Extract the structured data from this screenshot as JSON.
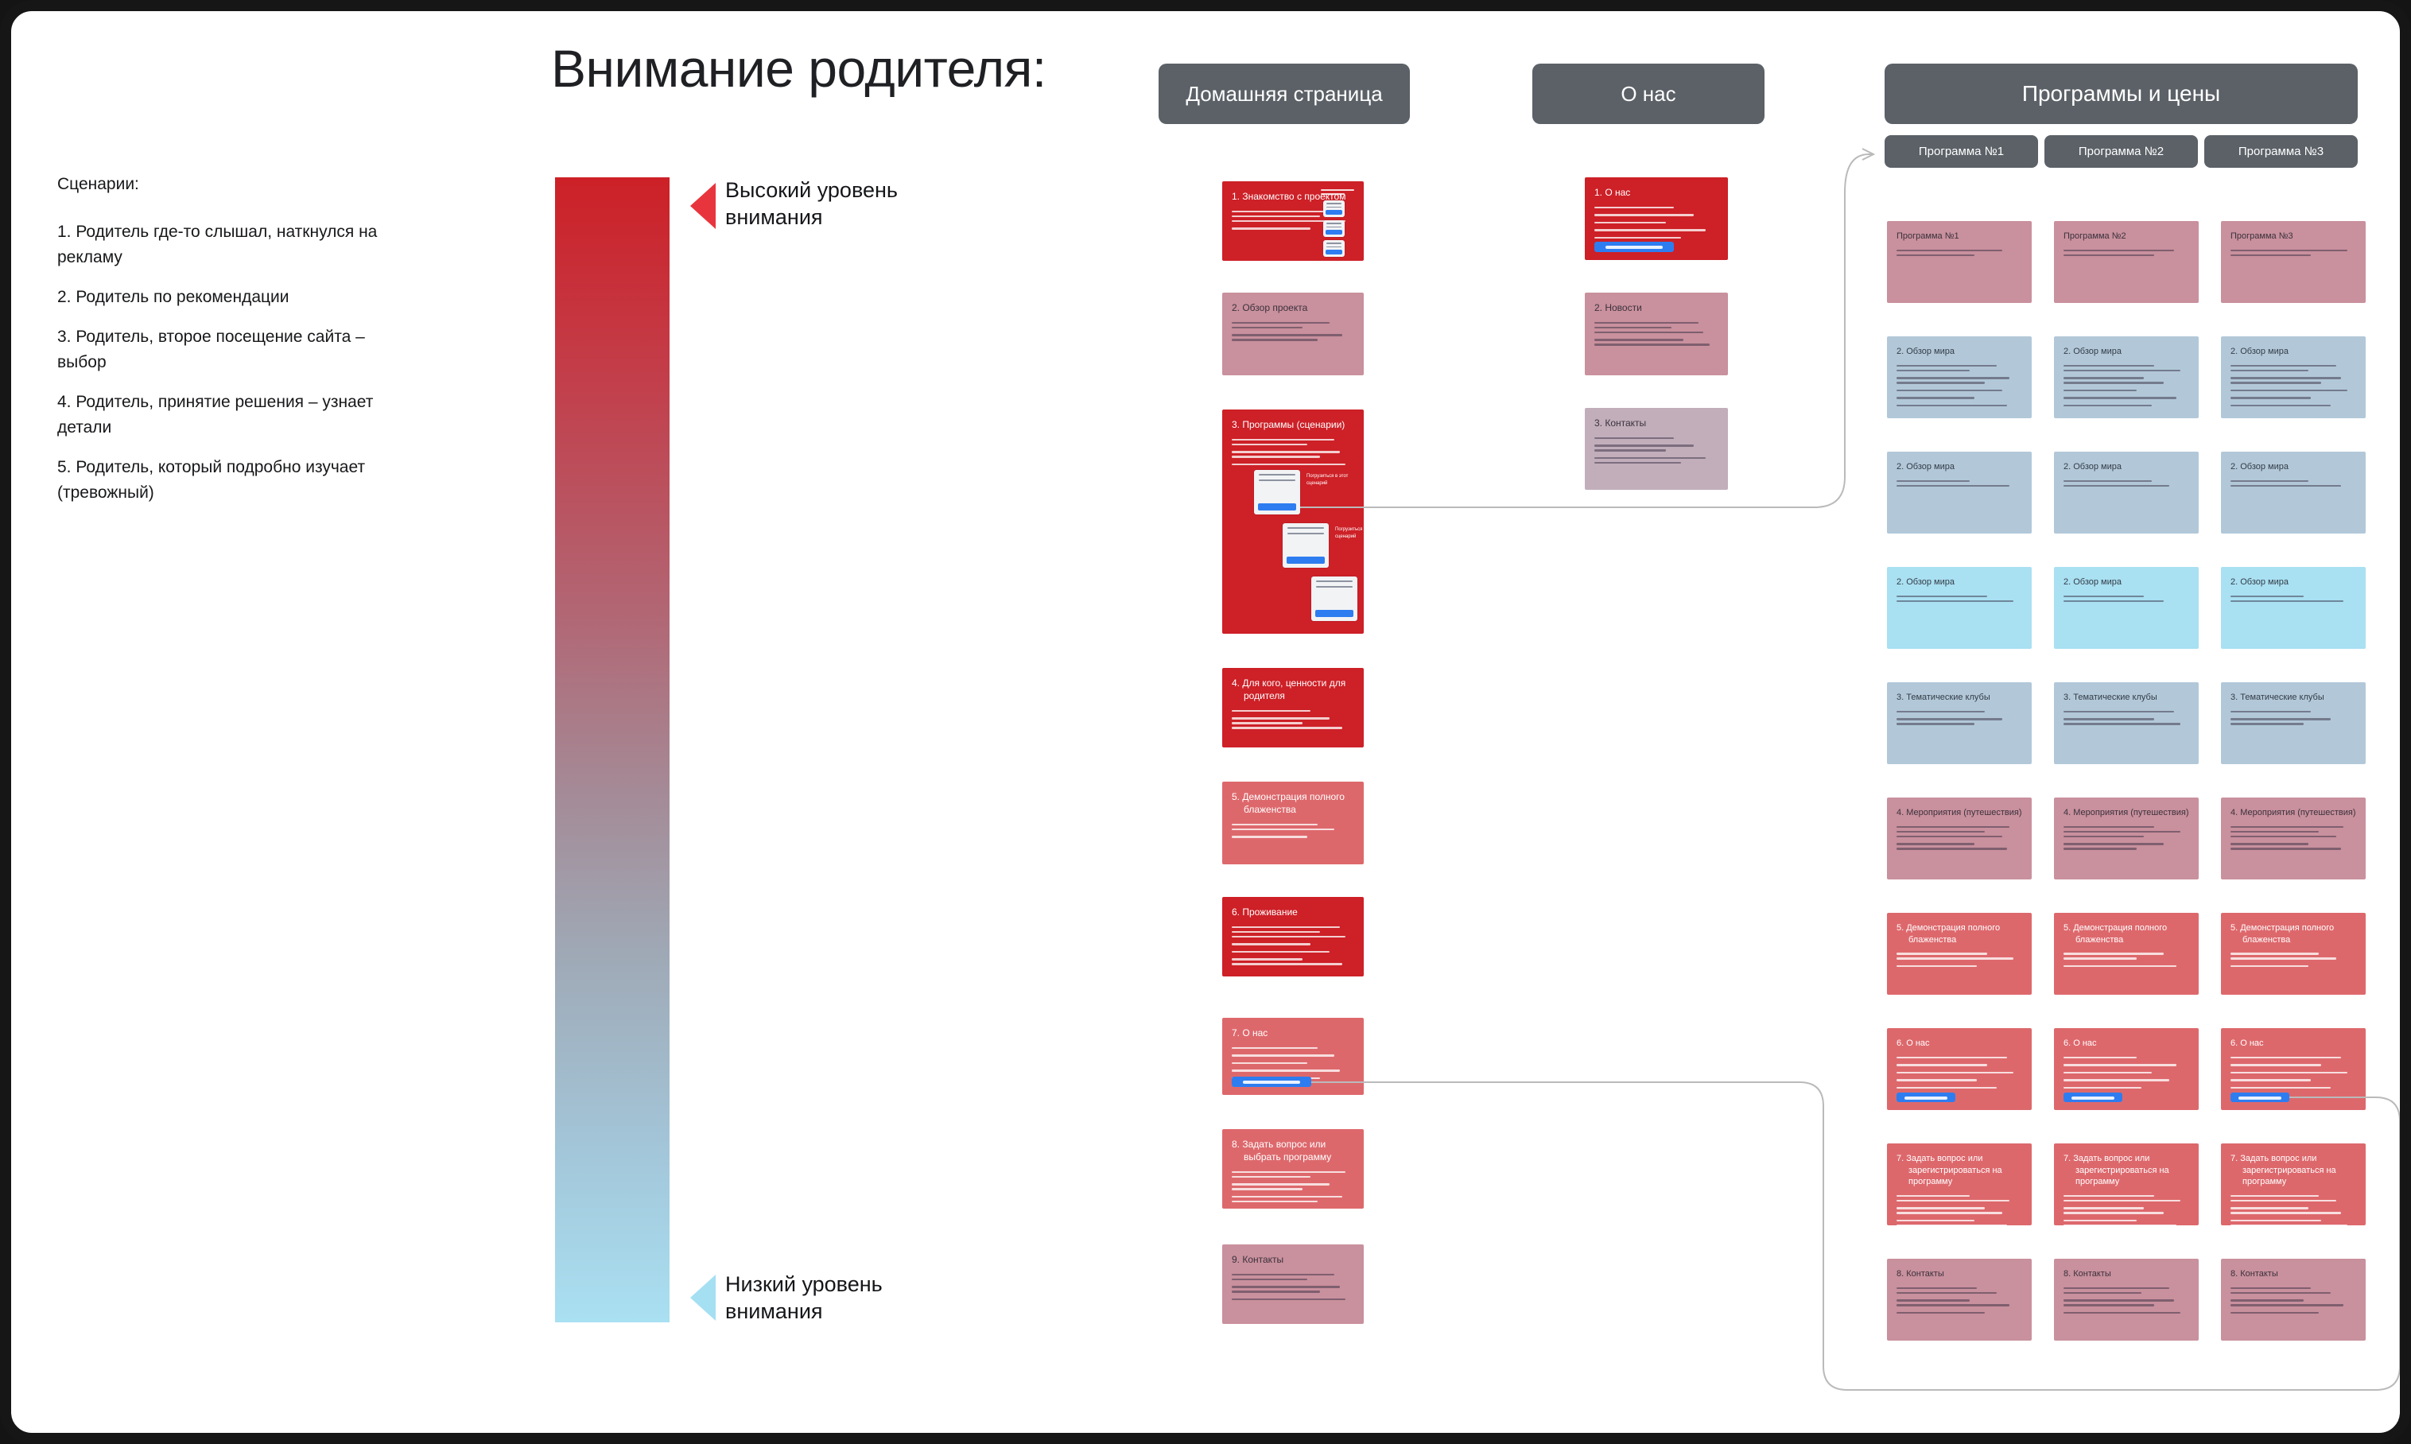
{
  "title": "Внимание родителя:",
  "scenarios": {
    "heading": "Сценарии:",
    "items": [
      "1. Родитель где-то слышал, наткнулся на рекламу",
      "2. Родитель по рекомендации",
      "3. Родитель, второе посещение сайта – выбор",
      "4. Родитель, принятие решения – узнает детали",
      "5. Родитель, который подробно изучает (тревожный)"
    ]
  },
  "attention": {
    "high": "Высокий уровень внимания",
    "low": "Низкий уровень внимания"
  },
  "nav": {
    "home": "Домашняя страница",
    "about": "О нас",
    "programs": "Программы и цены",
    "tabs": [
      "Программа №1",
      "Программа №2",
      "Программа №3"
    ]
  },
  "home_column": {
    "cards": [
      {
        "title": "1. Знакомство с проектом",
        "color": "red",
        "variant": "intro",
        "bullets": [
          3,
          1
        ]
      },
      {
        "title": "2. Обзор проекта",
        "color": "mauve",
        "bullets": [
          2,
          2
        ]
      },
      {
        "title": "3. Программы (сценарии)",
        "color": "red",
        "variant": "programs",
        "bullets": [
          2,
          2,
          1
        ],
        "mini_caption": "Погрузиться в этот сценарий"
      },
      {
        "title": "4. Для кого, ценности для родителя",
        "color": "red",
        "bullets": [
          1,
          3
        ]
      },
      {
        "title": "5. Демонстрация полного блаженства",
        "color": "salmon",
        "bullets": [
          2,
          1
        ]
      },
      {
        "title": "6. Проживание",
        "color": "red",
        "bullets": [
          3,
          1,
          1,
          2
        ]
      },
      {
        "title": "7. О нас",
        "color": "salmon",
        "bullets": [
          1,
          1,
          1,
          1,
          1
        ],
        "button": true
      },
      {
        "title": "8. Задать вопрос или выбрать программу",
        "color": "salmon",
        "bullets": [
          2,
          2,
          2
        ]
      },
      {
        "title": "9. Контакты",
        "color": "mauve",
        "bullets": [
          2,
          2,
          1
        ]
      }
    ]
  },
  "about_column": {
    "cards": [
      {
        "title": "1. О нас",
        "color": "red",
        "bullets": [
          1,
          1,
          1,
          1,
          1
        ],
        "button": true
      },
      {
        "title": "2. Новости",
        "color": "mauve",
        "bullets": [
          3,
          2
        ]
      },
      {
        "title": "3. Контакты",
        "color": "mauve_light",
        "bullets": [
          1,
          2,
          2
        ]
      }
    ]
  },
  "programs_grid": {
    "rows": [
      {
        "titles": [
          "Программа №1",
          "Программа №2",
          "Программа №3"
        ],
        "color": "mauve",
        "bullets": [
          2
        ]
      },
      {
        "title": "2. Обзор мира",
        "color": "bluegray",
        "bullets": [
          2,
          2,
          1,
          1,
          1
        ]
      },
      {
        "title": "2. Обзор мира",
        "color": "bluegray",
        "bullets": [
          2
        ]
      },
      {
        "title": "2. Обзор мира",
        "color": "cyan",
        "bullets": [
          2
        ]
      },
      {
        "title": "3. Тематические клубы",
        "color": "bluegray",
        "bullets": [
          1,
          2
        ]
      },
      {
        "title": "4. Мероприятия (путешествия)",
        "color": "mauve",
        "bullets": [
          3,
          2
        ]
      },
      {
        "title": "5. Демонстрация полного блаженства",
        "color": "salmon",
        "bullets": [
          2,
          1
        ]
      },
      {
        "title": "6. О нас",
        "color": "salmon",
        "bullets": [
          1,
          1,
          1,
          1,
          1
        ],
        "button": true
      },
      {
        "title": "7. Задать вопрос или зарегистрироваться на программу",
        "color": "salmon",
        "bullets": [
          2,
          2,
          2
        ]
      },
      {
        "title": "8. Контакты",
        "color": "mauve",
        "bullets": [
          2,
          2,
          1
        ]
      }
    ]
  },
  "colors": {
    "red": "#cd2027",
    "salmon": "#dd686c",
    "mauve": "#c9909d",
    "mauve_light": "#c2aebb",
    "bluegray": "#b2c8d9",
    "cyan": "#a9e0f2",
    "blue": "#2e7df0",
    "nav": "#5b6167",
    "line": "#bababa",
    "marker_high": "#e8353d",
    "marker_low": "#a5dff2"
  }
}
